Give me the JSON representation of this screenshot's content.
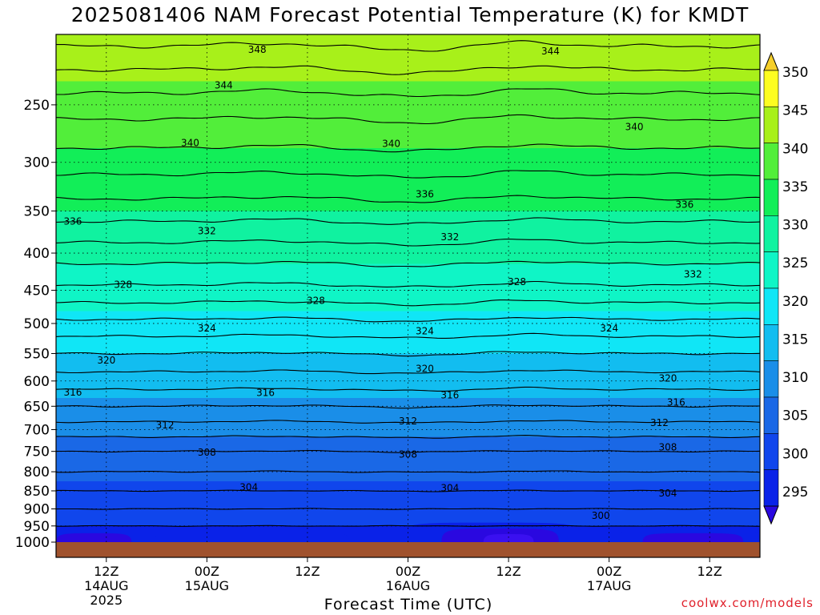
{
  "title": "2025081406 NAM Forecast Potential Temperature (K) for KMDT",
  "credit": "coolwx.com/models",
  "chart_data": {
    "type": "heatmap",
    "title": "2025081406 NAM Forecast Potential Temperature (K) for KMDT",
    "xlabel": "Forecast Time (UTC)",
    "ylabel": "",
    "y_scale": "log-pressure",
    "ylim": [
      1000,
      200
    ],
    "y_ticks": [
      250,
      300,
      350,
      400,
      450,
      500,
      550,
      600,
      650,
      700,
      750,
      800,
      850,
      900,
      950,
      1000
    ],
    "y_tick_labels": [
      "250",
      "300",
      "350",
      "400",
      "450",
      "500",
      "550",
      "600",
      "650",
      "700",
      "750",
      "800",
      "850",
      "900",
      "950",
      "1000"
    ],
    "x_range_hours": [
      6,
      90
    ],
    "x_ticks": [
      {
        "hour": 12,
        "lines": [
          "12Z",
          "14AUG",
          "2025"
        ]
      },
      {
        "hour": 24,
        "lines": [
          "00Z",
          "15AUG"
        ]
      },
      {
        "hour": 36,
        "lines": [
          "12Z"
        ]
      },
      {
        "hour": 48,
        "lines": [
          "00Z",
          "16AUG"
        ]
      },
      {
        "hour": 60,
        "lines": [
          "12Z"
        ]
      },
      {
        "hour": 72,
        "lines": [
          "00Z",
          "17AUG"
        ]
      },
      {
        "hour": 84,
        "lines": [
          "12Z"
        ]
      }
    ],
    "grid": true,
    "colorbar": {
      "position": "right",
      "levels": [
        295,
        300,
        305,
        310,
        315,
        320,
        325,
        330,
        335,
        340,
        345,
        350
      ],
      "labels": [
        "295",
        "300",
        "305",
        "310",
        "315",
        "320",
        "325",
        "330",
        "335",
        "340",
        "345",
        "350"
      ],
      "colors": [
        "#2a08e0",
        "#0a22e8",
        "#1046ec",
        "#1a68e6",
        "#1a8ee8",
        "#12bdf0",
        "#10e6f6",
        "#0ff5c6",
        "#10f2a0",
        "#12ee58",
        "#52ee3a",
        "#a8f01a",
        "#fdfd20",
        "#f6cf2a"
      ]
    },
    "contour_levels": [
      300,
      304,
      308,
      312,
      316,
      320,
      324,
      328,
      332,
      336,
      340,
      344,
      348
    ],
    "contour_labels": [
      {
        "text": "348",
        "hour": 30,
        "p": 210
      },
      {
        "text": "344",
        "hour": 65,
        "p": 211
      },
      {
        "text": "344",
        "hour": 26,
        "p": 235
      },
      {
        "text": "340",
        "hour": 22,
        "p": 282
      },
      {
        "text": "340",
        "hour": 46,
        "p": 283
      },
      {
        "text": "340",
        "hour": 75,
        "p": 268
      },
      {
        "text": "336",
        "hour": 8,
        "p": 362
      },
      {
        "text": "336",
        "hour": 50,
        "p": 332
      },
      {
        "text": "336",
        "hour": 81,
        "p": 343
      },
      {
        "text": "332",
        "hour": 24,
        "p": 373
      },
      {
        "text": "332",
        "hour": 53,
        "p": 380
      },
      {
        "text": "332",
        "hour": 82,
        "p": 428
      },
      {
        "text": "328",
        "hour": 14,
        "p": 442
      },
      {
        "text": "328",
        "hour": 37,
        "p": 465
      },
      {
        "text": "328",
        "hour": 61,
        "p": 438
      },
      {
        "text": "324",
        "hour": 24,
        "p": 508
      },
      {
        "text": "324",
        "hour": 50,
        "p": 512
      },
      {
        "text": "324",
        "hour": 72,
        "p": 508
      },
      {
        "text": "320",
        "hour": 12,
        "p": 562
      },
      {
        "text": "320",
        "hour": 50,
        "p": 577
      },
      {
        "text": "320",
        "hour": 79,
        "p": 595
      },
      {
        "text": "316",
        "hour": 8,
        "p": 622
      },
      {
        "text": "316",
        "hour": 31,
        "p": 623
      },
      {
        "text": "316",
        "hour": 53,
        "p": 628
      },
      {
        "text": "316",
        "hour": 80,
        "p": 642
      },
      {
        "text": "312",
        "hour": 19,
        "p": 690
      },
      {
        "text": "312",
        "hour": 48,
        "p": 682
      },
      {
        "text": "312",
        "hour": 78,
        "p": 685
      },
      {
        "text": "308",
        "hour": 24,
        "p": 753
      },
      {
        "text": "308",
        "hour": 48,
        "p": 757
      },
      {
        "text": "308",
        "hour": 79,
        "p": 740
      },
      {
        "text": "304",
        "hour": 29,
        "p": 840
      },
      {
        "text": "304",
        "hour": 53,
        "p": 843
      },
      {
        "text": "304",
        "hour": 79,
        "p": 857
      },
      {
        "text": "300",
        "hour": 71,
        "p": 920
      }
    ],
    "terrain_color": "#a0522d"
  }
}
